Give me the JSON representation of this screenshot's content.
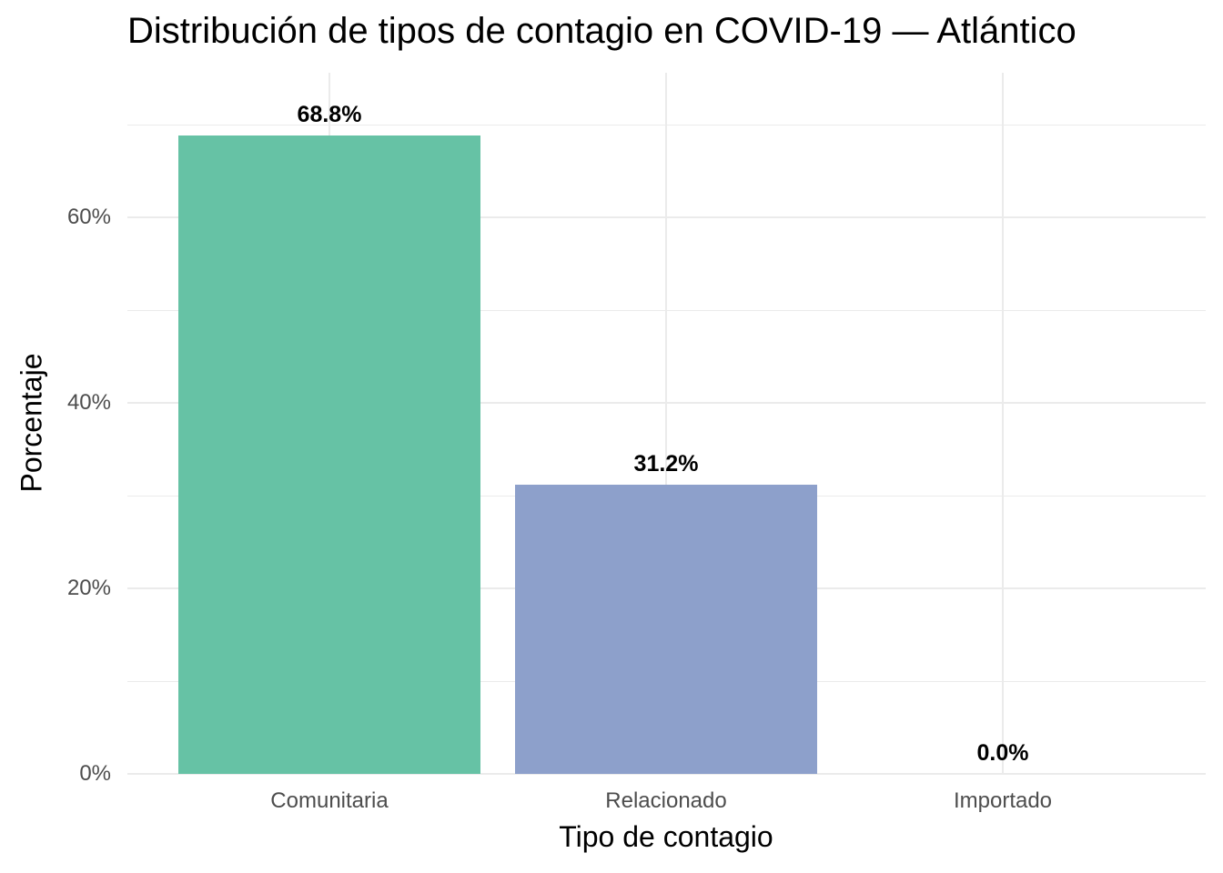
{
  "chart_data": {
    "type": "bar",
    "title": "Distribución de tipos de contagio en COVID-19 — Atlántico",
    "xlabel": "Tipo de contagio",
    "ylabel": "Porcentaje",
    "categories": [
      "Comunitaria",
      "Relacionado",
      "Importado"
    ],
    "values": [
      68.8,
      31.2,
      0.0
    ],
    "value_labels": [
      "68.8%",
      "31.2%",
      "0.0%"
    ],
    "colors": [
      "#66c2a5",
      "#8da0cb",
      "#fc8d62"
    ],
    "ylim": [
      0,
      73
    ],
    "yticks": [
      0,
      20,
      40,
      60
    ],
    "ytick_labels": [
      "0%",
      "20%",
      "40%",
      "60%"
    ],
    "grid": true,
    "legend": "none"
  }
}
